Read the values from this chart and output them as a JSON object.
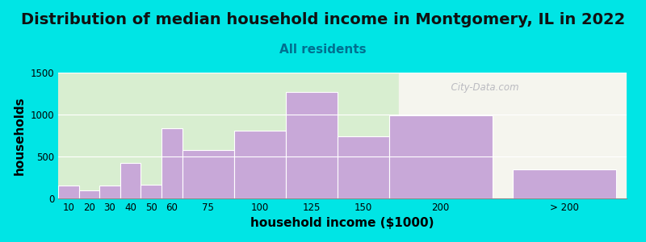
{
  "title": "Distribution of median household income in Montgomery, IL in 2022",
  "subtitle": "All residents",
  "xlabel": "household income ($1000)",
  "ylabel": "households",
  "bar_labels": [
    "10",
    "20",
    "30",
    "40",
    "50",
    "60",
    "75",
    "100",
    "125",
    "150",
    "200",
    "> 200"
  ],
  "bar_values": [
    150,
    100,
    150,
    420,
    160,
    840,
    575,
    810,
    1270,
    740,
    990,
    350
  ],
  "bar_color": "#c8a8d8",
  "bar_edgecolor": "#ffffff",
  "ylim": [
    0,
    1500
  ],
  "yticks": [
    0,
    500,
    1000,
    1500
  ],
  "background_outer": "#00e5e5",
  "background_plot_left": "#d8eed0",
  "background_plot_right": "#f5f5ee",
  "title_fontsize": 14,
  "subtitle_fontsize": 11,
  "subtitle_color": "#007090",
  "axis_label_fontsize": 11,
  "watermark": "  City-Data.com",
  "watermark_icon": "●"
}
